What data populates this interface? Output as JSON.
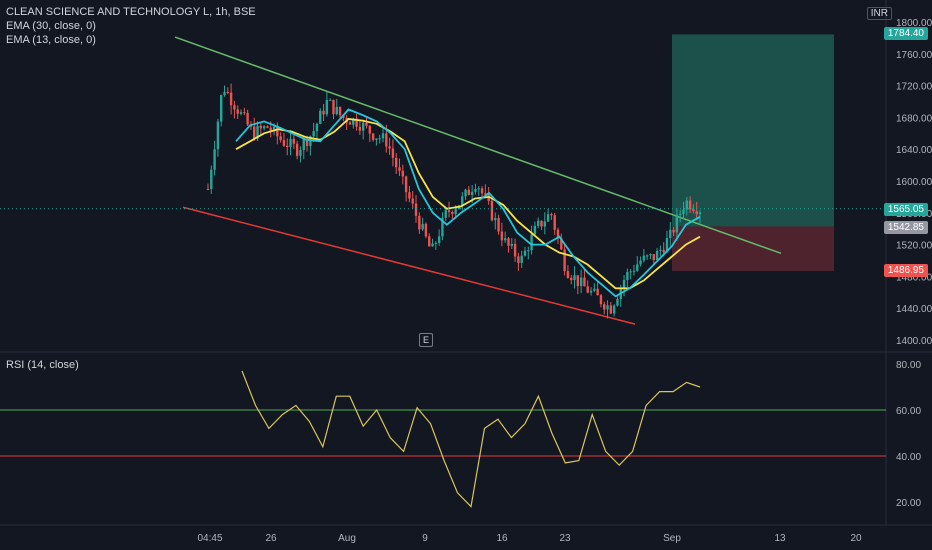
{
  "symbol_title": "CLEAN SCIENCE AND TECHNOLOGY L, 1h, BSE",
  "indicators": [
    "EMA (30, close, 0)",
    "EMA (13, close, 0)"
  ],
  "rsi_label": "RSI (14, close)",
  "currency": "INR",
  "earnings_mark": "E",
  "colors": {
    "background": "#131722",
    "up": "#26a69a",
    "down": "#ef5350",
    "ema30": "#f7e34a",
    "ema13": "#26c6da",
    "upper_channel": "#66bb6a",
    "lower_channel": "#e53935",
    "rsi": "#d9c45b",
    "profit_zone": "#1e5a52",
    "loss_zone": "#5b2630"
  },
  "chart_data": [
    {
      "type": "candlestick",
      "title": "CLEAN SCIENCE AND TECHNOLOGY L, 1h, BSE",
      "y_ticks": [
        "1800.00",
        "1760.00",
        "1720.00",
        "1680.00",
        "1640.00",
        "1600.00",
        "1560.00",
        "1520.00",
        "1480.00",
        "1440.00",
        "1400.00"
      ],
      "ylim": [
        1400,
        1800
      ],
      "x_ticks": [
        "04:45",
        "26",
        "Aug",
        "9",
        "16",
        "23",
        "Sep",
        "13",
        "20"
      ],
      "price_labels": {
        "target": "1784.40",
        "last": "1565.05",
        "entry": "1542.85",
        "stop": "1486.95"
      },
      "close_path": [
        [
          "04:45",
          1590
        ],
        [
          "04:45",
          1720
        ],
        [
          "04:45",
          1690
        ],
        [
          "26",
          1660
        ],
        [
          "26",
          1668
        ],
        [
          "26",
          1650
        ],
        [
          "26",
          1640
        ],
        [
          "Aug",
          1660
        ],
        [
          "Aug",
          1700
        ],
        [
          "Aug",
          1680
        ],
        [
          "Aug",
          1675
        ],
        [
          "9",
          1660
        ],
        [
          "9",
          1650
        ],
        [
          "9",
          1600
        ],
        [
          "9",
          1555
        ],
        [
          "9",
          1510
        ],
        [
          "9",
          1560
        ],
        [
          "16",
          1575
        ],
        [
          "16",
          1600
        ],
        [
          "16",
          1560
        ],
        [
          "16",
          1520
        ],
        [
          "23",
          1500
        ],
        [
          "23",
          1540
        ],
        [
          "23",
          1560
        ],
        [
          "23",
          1490
        ],
        [
          "23",
          1470
        ],
        [
          "23",
          1455
        ],
        [
          "23",
          1440
        ],
        [
          "Sep",
          1480
        ],
        [
          "Sep",
          1500
        ],
        [
          "Sep",
          1505
        ],
        [
          "Sep",
          1530
        ],
        [
          "Sep",
          1575
        ],
        [
          "Sep",
          1565
        ]
      ],
      "ema30": [
        1640,
        1650,
        1660,
        1665,
        1662,
        1655,
        1652,
        1662,
        1678,
        1676,
        1672,
        1662,
        1650,
        1610,
        1580,
        1565,
        1568,
        1578,
        1580,
        1570,
        1550,
        1535,
        1520,
        1510,
        1505,
        1495,
        1480,
        1465,
        1465,
        1475,
        1490,
        1505,
        1520,
        1530
      ],
      "ema13": [
        1650,
        1670,
        1675,
        1668,
        1660,
        1652,
        1650,
        1670,
        1690,
        1683,
        1675,
        1660,
        1640,
        1590,
        1560,
        1545,
        1560,
        1572,
        1585,
        1565,
        1535,
        1520,
        1520,
        1530,
        1505,
        1485,
        1470,
        1455,
        1465,
        1482,
        1500,
        1518,
        1545,
        1555
      ],
      "upper_channel": [
        [
          175,
          1781
        ],
        [
          781,
          1509
        ]
      ],
      "lower_channel": [
        [
          183,
          1567
        ],
        [
          635,
          1420
        ]
      ]
    },
    {
      "type": "line",
      "title": "RSI (14, close)",
      "y_ticks": [
        "80.00",
        "60.00",
        "40.00",
        "20.00"
      ],
      "ylim": [
        10,
        85
      ],
      "levels": [
        60,
        40
      ],
      "values": [
        77,
        62,
        52,
        58,
        62,
        55,
        44,
        66,
        66,
        53,
        60,
        48,
        42,
        61,
        54,
        38,
        24,
        18,
        52,
        56,
        48,
        54,
        66,
        50,
        37,
        38,
        58,
        42,
        36,
        42,
        62,
        68,
        68,
        72,
        70
      ]
    }
  ]
}
